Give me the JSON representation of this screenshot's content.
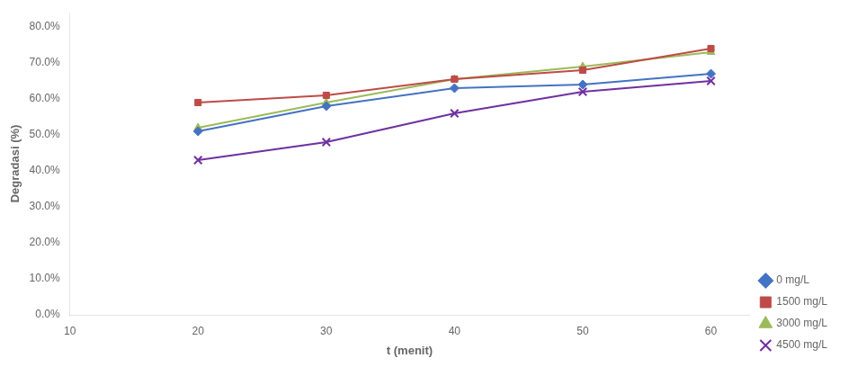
{
  "chart_data": {
    "type": "line",
    "x": [
      20,
      30,
      40,
      50,
      60
    ],
    "series": [
      {
        "name": "0 mg/L",
        "color": "#4472C4",
        "marker": "diamond",
        "values": [
          0.51,
          0.58,
          0.63,
          0.64,
          0.67
        ]
      },
      {
        "name": "1500 mg/L",
        "color": "#BE4B48",
        "marker": "square",
        "values": [
          0.59,
          0.61,
          0.655,
          0.68,
          0.74
        ]
      },
      {
        "name": "3000 mg/L",
        "color": "#9BBB59",
        "marker": "triangle",
        "values": [
          0.52,
          0.59,
          0.655,
          0.69,
          0.73
        ]
      },
      {
        "name": "4500 mg/L",
        "color": "#7030A0",
        "marker": "x",
        "values": [
          0.43,
          0.48,
          0.56,
          0.62,
          0.65
        ]
      }
    ],
    "xlabel": "t (menit)",
    "ylabel": "Degradasi (%)",
    "xlim": [
      10,
      63
    ],
    "ylim": [
      0.0,
      0.84
    ],
    "xticks": [
      10,
      20,
      30,
      40,
      50,
      60
    ],
    "yticks": [
      {
        "value": 0.0,
        "label": "0.0%"
      },
      {
        "value": 0.1,
        "label": "10.0%"
      },
      {
        "value": 0.2,
        "label": "20.0%"
      },
      {
        "value": 0.3,
        "label": "30.0%"
      },
      {
        "value": 0.4,
        "label": "40.0%"
      },
      {
        "value": 0.5,
        "label": "50.0%"
      },
      {
        "value": 0.6,
        "label": "60.0%"
      },
      {
        "value": 0.7,
        "label": "70.0%"
      },
      {
        "value": 0.8,
        "label": "80.0%"
      }
    ],
    "grid": false,
    "legend": "lower right"
  }
}
